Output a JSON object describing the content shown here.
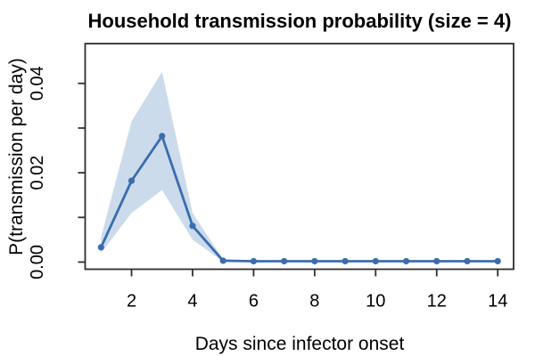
{
  "chart_data": {
    "type": "line",
    "title": "Household transmission probability (size = 4)",
    "xlabel": "Days since infector onset",
    "ylabel": "P(transmission per day)",
    "x": [
      1,
      2,
      3,
      4,
      5,
      6,
      7,
      8,
      9,
      10,
      11,
      12,
      13,
      14
    ],
    "series": [
      {
        "name": "mean",
        "values": [
          0.0033,
          0.0182,
          0.0282,
          0.0081,
          0.0003,
          0.0002,
          0.0002,
          0.0002,
          0.0002,
          0.0002,
          0.0002,
          0.0002,
          0.0002,
          0.0002
        ]
      },
      {
        "name": "ci_lower",
        "values": [
          0.002,
          0.011,
          0.0161,
          0.005,
          0.0001,
          0.0001,
          0.0001,
          0.0001,
          0.0001,
          0.0001,
          0.0001,
          0.0001,
          0.0001,
          0.0001
        ]
      },
      {
        "name": "ci_upper",
        "values": [
          0.0056,
          0.0315,
          0.0426,
          0.011,
          0.0006,
          0.0004,
          0.0004,
          0.0004,
          0.0004,
          0.0004,
          0.0004,
          0.0004,
          0.0004,
          0.0004
        ]
      }
    ],
    "xticks": [
      2,
      4,
      6,
      8,
      10,
      12,
      14
    ],
    "yticks": {
      "values": [
        0,
        0.01,
        0.02,
        0.03,
        0.04
      ],
      "labels": [
        "0.00",
        "",
        "0.02",
        "",
        "0.04"
      ]
    },
    "xlim": [
      0.48,
      14.52
    ],
    "ylim": [
      -0.0016,
      0.0489
    ],
    "grid": false,
    "legend": null,
    "colors": {
      "line": "#3a6dad",
      "point": "#3a6dad",
      "band": "#ccdbeb",
      "frame": "#2e2e2e",
      "text": "#000000"
    }
  }
}
